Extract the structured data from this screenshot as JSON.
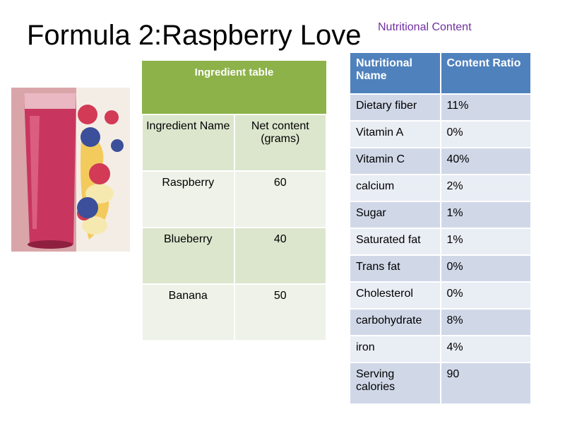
{
  "slide": {
    "title": "Formula 2:Raspberry Love",
    "nutrition_caption": "Nutritional Content"
  },
  "ingredient_table": {
    "header": "Ingredient table",
    "columns": [
      "Ingredient Name",
      "Net content (grams)"
    ],
    "rows": [
      {
        "name": "Raspberry",
        "grams": "60"
      },
      {
        "name": "Blueberry",
        "grams": "40"
      },
      {
        "name": "Banana",
        "grams": "50"
      }
    ]
  },
  "nutrition_table": {
    "columns": [
      "Nutritional Name",
      "Content Ratio"
    ],
    "rows": [
      {
        "name": "Dietary fiber",
        "ratio": "11%"
      },
      {
        "name": "Vitamin A",
        "ratio": "0%"
      },
      {
        "name": "Vitamin C",
        "ratio": "40%"
      },
      {
        "name": "calcium",
        "ratio": "2%"
      },
      {
        "name": "Sugar",
        "ratio": "1%"
      },
      {
        "name": "Saturated fat",
        "ratio": "1%"
      },
      {
        "name": "Trans fat",
        "ratio": "0%"
      },
      {
        "name": "Cholesterol",
        "ratio": "0%"
      },
      {
        "name": "carbohydrate",
        "ratio": "8%"
      },
      {
        "name": "iron",
        "ratio": "4%"
      },
      {
        "name": "Serving calories",
        "ratio": "90"
      }
    ]
  },
  "colors": {
    "ingredient_header": "#8db24a",
    "nutrition_header": "#4f81bd",
    "caption": "#7030a0"
  }
}
